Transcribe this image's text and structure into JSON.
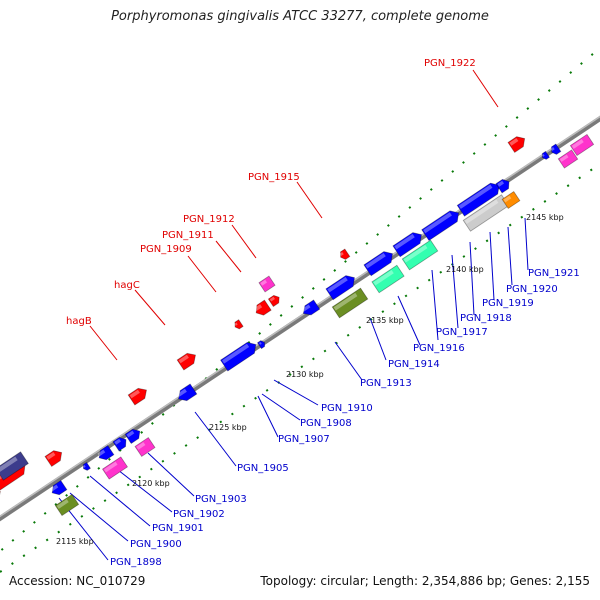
{
  "title": "Porphyromonas gingivalis ATCC 33277, complete genome",
  "footer": {
    "accession": "Accession: NC_010729",
    "summary": "Topology: circular; Length: 2,354,886 bp; Genes: 2,155"
  },
  "ticks": [
    "2115 kbp",
    "2120 kbp",
    "2125 kbp",
    "2130 kbp",
    "2135 kbp",
    "2140 kbp",
    "2145 kbp"
  ],
  "labels_top": [
    "PGN_1922",
    "PGN_1915",
    "PGN_1912",
    "PGN_1911",
    "PGN_1909",
    "hagC",
    "hagB"
  ],
  "labels_bottom": [
    "PGN_1921",
    "PGN_1920",
    "PGN_1919",
    "PGN_1918",
    "PGN_1917",
    "PGN_1916",
    "PGN_1914",
    "PGN_1913",
    "PGN_1910",
    "PGN_1908",
    "PGN_1907",
    "PGN_1905",
    "PGN_1903",
    "PGN_1902",
    "PGN_1901",
    "PGN_1900",
    "PGN_1898"
  ],
  "colors": {
    "red": "#ff0000",
    "blue": "#0000ff",
    "pink": "#ff33cc",
    "olive": "#6b8e23",
    "teal": "#33ffb0",
    "grey": "#cccccc",
    "orange": "#ff8c00",
    "navy": "#3c3c8c",
    "label_red": "#e00000",
    "label_blue": "#0000cc"
  }
}
